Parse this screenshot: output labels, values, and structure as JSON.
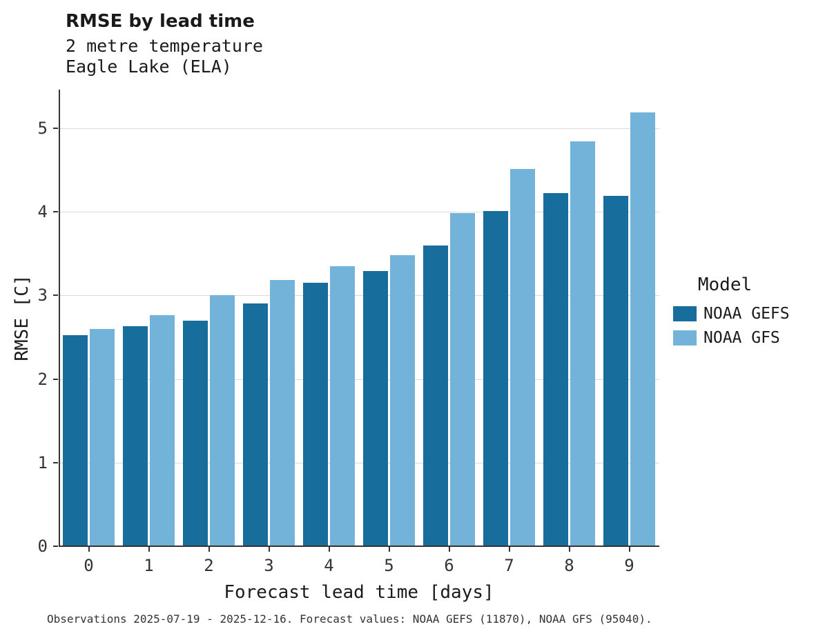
{
  "title": "RMSE by lead time",
  "subtitle_line1": "2 metre temperature",
  "subtitle_line2": "Eagle Lake (ELA)",
  "caption": "Observations 2025-07-19 - 2025-12-16. Forecast values: NOAA GEFS (11870), NOAA GFS (95040).",
  "legend": {
    "title": "Model"
  },
  "colors": {
    "gefs": "#176d9c",
    "gfs": "#74b3d9",
    "grid": "#d9d9d9",
    "axis": "#333333",
    "background": "#ffffff"
  },
  "chart_data": {
    "type": "bar",
    "grouped": true,
    "title": "RMSE by lead time",
    "subtitle": [
      "2 metre temperature",
      "Eagle Lake (ELA)"
    ],
    "xlabel": "Forecast lead time [days]",
    "ylabel": "RMSE [C]",
    "categories": [
      "0",
      "1",
      "2",
      "3",
      "4",
      "5",
      "6",
      "7",
      "8",
      "9"
    ],
    "series": [
      {
        "name": "NOAA GEFS",
        "color": "#176d9c",
        "values": [
          2.52,
          2.63,
          2.7,
          2.9,
          3.15,
          3.29,
          3.6,
          4.01,
          4.22,
          4.19
        ]
      },
      {
        "name": "NOAA GFS",
        "color": "#74b3d9",
        "values": [
          2.6,
          2.76,
          3.0,
          3.18,
          3.35,
          3.48,
          3.98,
          4.51,
          4.84,
          5.19
        ]
      }
    ],
    "ylim": [
      0,
      5.46
    ],
    "yticks": [
      0,
      1,
      2,
      3,
      4,
      5
    ],
    "grid": "horizontal-major",
    "legend_position": "right",
    "caption": "Observations 2025-07-19 - 2025-12-16. Forecast values: NOAA GEFS (11870), NOAA GFS (95040)."
  }
}
